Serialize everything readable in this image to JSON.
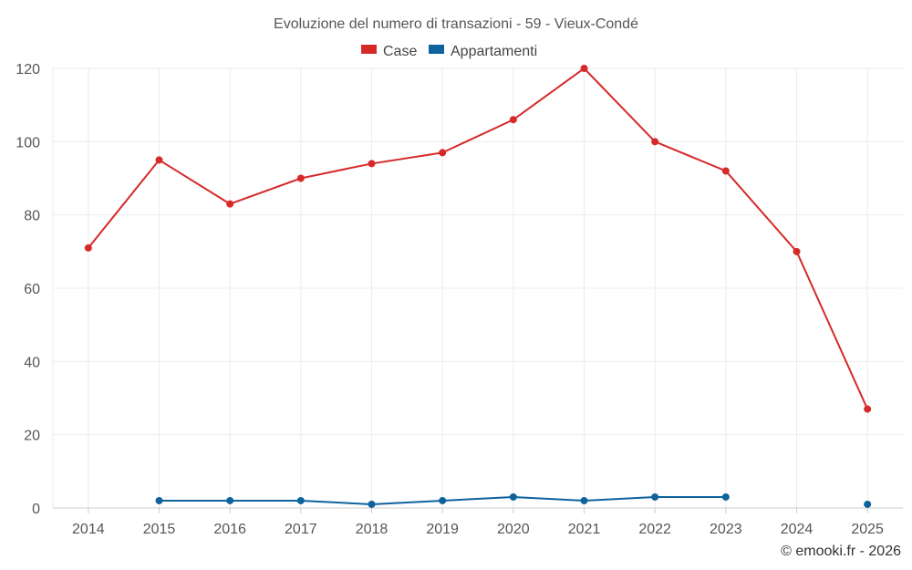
{
  "chart_data": {
    "type": "line",
    "title": "Evoluzione del numero di transazioni - 59 - Vieux-Condé",
    "x": [
      "2014",
      "2015",
      "2016",
      "2017",
      "2018",
      "2019",
      "2020",
      "2021",
      "2022",
      "2023",
      "2024",
      "2025"
    ],
    "series": [
      {
        "name": "Case",
        "color": "#d62a2a",
        "values": [
          71,
          95,
          83,
          90,
          94,
          97,
          106,
          120,
          100,
          92,
          70,
          27
        ]
      },
      {
        "name": "Appartamenti",
        "color": "#0e639c",
        "values": [
          null,
          2,
          2,
          2,
          1,
          2,
          3,
          2,
          3,
          3,
          null,
          1
        ]
      }
    ],
    "yticks": [
      "0",
      "20",
      "40",
      "60",
      "80",
      "100",
      "120"
    ],
    "ylim": [
      0,
      120
    ],
    "grid": true,
    "legend_position": "top-center",
    "credit": "© emooki.fr - 2026"
  }
}
